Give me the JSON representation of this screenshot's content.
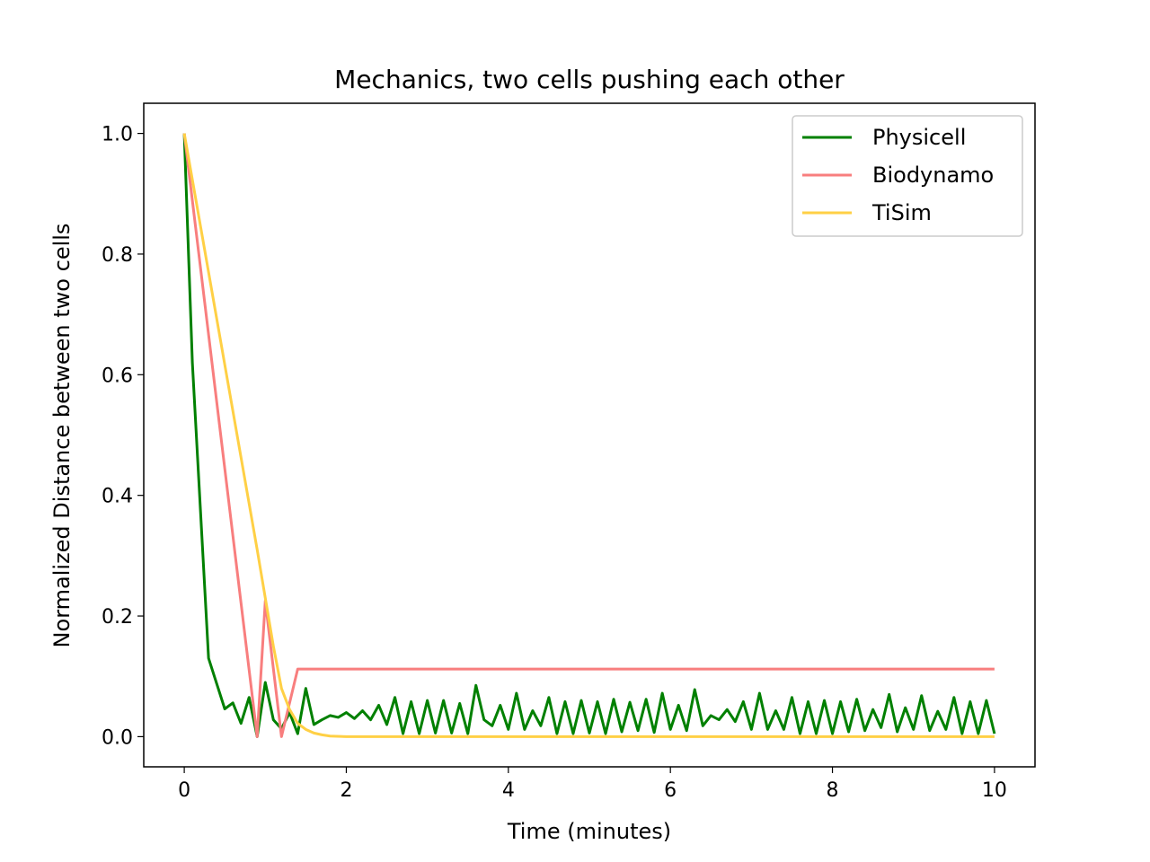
{
  "chart_data": {
    "type": "line",
    "title": "Mechanics, two cells pushing each other",
    "xlabel": "Time (minutes)",
    "ylabel": "Normalized Distance between two cells",
    "xlim": [
      -0.5,
      10.5
    ],
    "ylim": [
      -0.05,
      1.05
    ],
    "xticks": [
      0,
      2,
      4,
      6,
      8,
      10
    ],
    "xtick_labels": [
      "0",
      "2",
      "4",
      "6",
      "8",
      "10"
    ],
    "yticks": [
      0.0,
      0.2,
      0.4,
      0.6,
      0.8,
      1.0
    ],
    "ytick_labels": [
      "0.0",
      "0.2",
      "0.4",
      "0.6",
      "0.8",
      "1.0"
    ],
    "grid": false,
    "legend_position": "top-right",
    "series": [
      {
        "name": "Physicell",
        "color": "#008000",
        "x": [
          0,
          0.1,
          0.3,
          0.5,
          0.6,
          0.7,
          0.8,
          0.9,
          1.0,
          1.1,
          1.2,
          1.3,
          1.4,
          1.5,
          1.6,
          1.7,
          1.8,
          1.9,
          2.0,
          2.1,
          2.2,
          2.3,
          2.4,
          2.5,
          2.6,
          2.7,
          2.8,
          2.9,
          3.0,
          3.1,
          3.2,
          3.3,
          3.4,
          3.5,
          3.6,
          3.7,
          3.8,
          3.9,
          4.0,
          4.1,
          4.2,
          4.3,
          4.4,
          4.5,
          4.6,
          4.7,
          4.8,
          4.9,
          5.0,
          5.1,
          5.2,
          5.3,
          5.4,
          5.5,
          5.6,
          5.7,
          5.8,
          5.9,
          6.0,
          6.1,
          6.2,
          6.3,
          6.4,
          6.5,
          6.6,
          6.7,
          6.8,
          6.9,
          7.0,
          7.1,
          7.2,
          7.3,
          7.4,
          7.5,
          7.6,
          7.7,
          7.8,
          7.9,
          8.0,
          8.1,
          8.2,
          8.3,
          8.4,
          8.5,
          8.6,
          8.7,
          8.8,
          8.9,
          9.0,
          9.1,
          9.2,
          9.3,
          9.4,
          9.5,
          9.6,
          9.7,
          9.8,
          9.9,
          10.0
        ],
        "y": [
          1.0,
          0.62,
          0.13,
          0.046,
          0.056,
          0.022,
          0.065,
          0.0,
          0.09,
          0.028,
          0.013,
          0.04,
          0.005,
          0.08,
          0.02,
          0.028,
          0.035,
          0.032,
          0.04,
          0.03,
          0.043,
          0.028,
          0.052,
          0.02,
          0.065,
          0.005,
          0.058,
          0.005,
          0.06,
          0.006,
          0.06,
          0.006,
          0.055,
          0.005,
          0.085,
          0.028,
          0.018,
          0.052,
          0.012,
          0.072,
          0.012,
          0.043,
          0.018,
          0.065,
          0.005,
          0.058,
          0.005,
          0.06,
          0.006,
          0.058,
          0.005,
          0.062,
          0.008,
          0.057,
          0.01,
          0.062,
          0.007,
          0.072,
          0.012,
          0.052,
          0.01,
          0.078,
          0.018,
          0.035,
          0.028,
          0.045,
          0.025,
          0.058,
          0.012,
          0.072,
          0.012,
          0.043,
          0.012,
          0.065,
          0.005,
          0.058,
          0.005,
          0.06,
          0.005,
          0.058,
          0.008,
          0.062,
          0.01,
          0.045,
          0.015,
          0.07,
          0.008,
          0.048,
          0.012,
          0.068,
          0.01,
          0.042,
          0.012,
          0.065,
          0.005,
          0.058,
          0.005,
          0.06,
          0.005
        ]
      },
      {
        "name": "Biodynamo",
        "color": "#f87e7e",
        "x": [
          0,
          0.9,
          1.0,
          1.2,
          1.4,
          10.0
        ],
        "y": [
          1.0,
          0.0,
          0.225,
          0.0,
          0.112,
          0.112
        ]
      },
      {
        "name": "TiSim",
        "color": "#ffd045",
        "x": [
          0,
          0.9,
          1.0,
          1.1,
          1.2,
          1.3,
          1.4,
          1.5,
          1.6,
          1.7,
          1.8,
          2.0,
          2.5,
          10.0
        ],
        "y": [
          1.0,
          0.31,
          0.23,
          0.15,
          0.08,
          0.045,
          0.022,
          0.012,
          0.006,
          0.003,
          0.001,
          0.0,
          0.0,
          0.0
        ]
      }
    ]
  }
}
